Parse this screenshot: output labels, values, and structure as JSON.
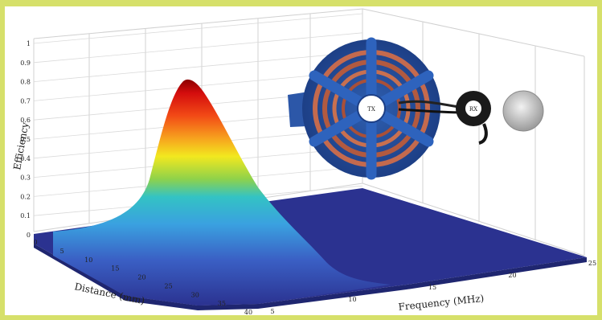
{
  "chart_data": {
    "type": "surface",
    "title": "",
    "zlabel": "Efficiency",
    "xlabel": "Frequency (MHz)",
    "ylabel": "Distance (mm)",
    "z_ticks": [
      "0",
      "0.1",
      "0.2",
      "0.3",
      "0.4",
      "0.5",
      "0.6",
      "0.7",
      "0.8",
      "0.9",
      "1"
    ],
    "x_ticks": [
      "5",
      "10",
      "15",
      "20",
      "25"
    ],
    "y_ticks": [
      "0",
      "5",
      "10",
      "15",
      "20",
      "25",
      "30",
      "35",
      "40"
    ],
    "zlim": [
      0,
      1
    ],
    "xlim": [
      5,
      25
    ],
    "ylim": [
      0,
      40
    ],
    "peak": {
      "frequency": 5,
      "distance": 5,
      "efficiency": 0.8
    },
    "grid": true,
    "colormap": "jet",
    "inset_labels": {
      "tx": "TX",
      "rx": "RX"
    }
  }
}
